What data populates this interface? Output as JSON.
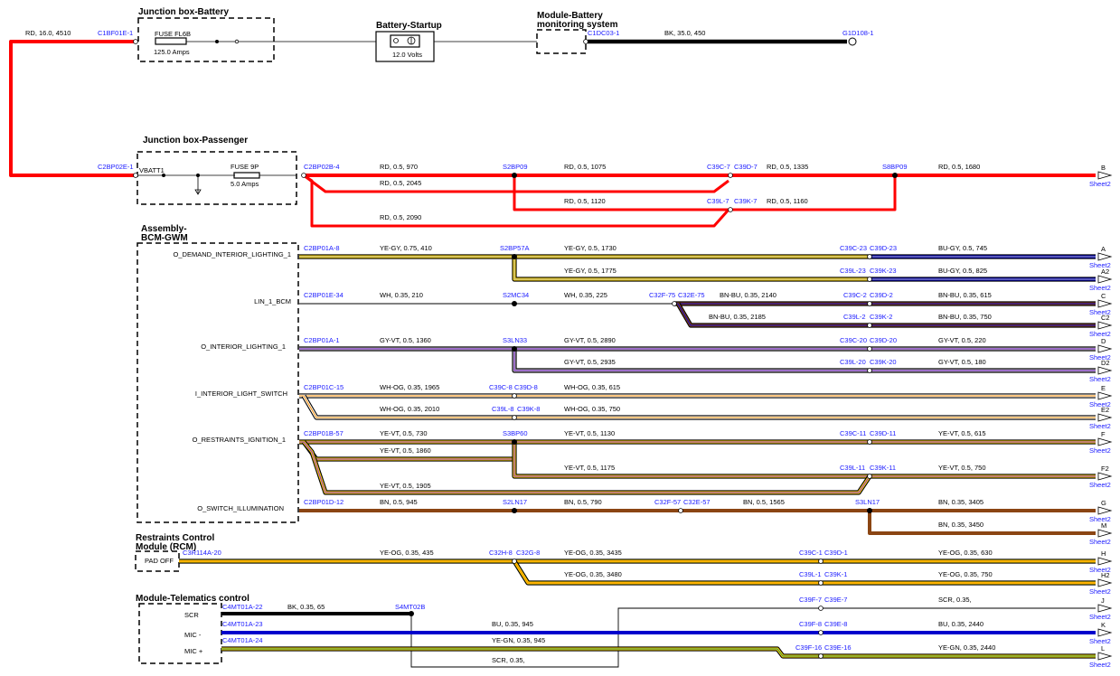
{
  "blocks": {
    "battery_jb": "Junction box-Battery",
    "battery_startup": "Battery-Startup",
    "bms_line1": "Module-Battery",
    "bms_line2": "monitoring system",
    "passenger_jb": "Junction box-Passenger",
    "bcm_line1": "Assembly-",
    "bcm_line2": "BCM-GWM",
    "rcm_line1": "Restraints Control",
    "rcm_line2": "Module (RCM)",
    "telematics": "Module-Telematics control"
  },
  "components": {
    "fuse_f6b": "FUSE FL6B",
    "fuse_f6b_amps": "125.0 Amps",
    "battery_volts": "12.0 Volts",
    "vbatt1": "VBATT1",
    "fuse_9p": "FUSE 9P",
    "fuse_9p_amps": "5.0 Amps"
  },
  "pins": {
    "bcm": [
      "O_DEMAND_INTERIOR_LIGHTING_1",
      "LIN_1_BCM",
      "O_INTERIOR_LIGHTING_1",
      "I_INTERIOR_LIGHT_SWITCH",
      "O_RESTRAINTS_IGNITION_1",
      "O_SWITCH_ILLUMINATION"
    ],
    "rcm": "PAD OFF",
    "tcu": [
      "SCR",
      "MIC -",
      "MIC +"
    ]
  },
  "connectors": [
    "C1BF01E-1",
    "C1DC03-1",
    "G1D108-1",
    "C2BP02E-1",
    "C2BP02B-4",
    "S2BP09",
    "C39C-7",
    "C39D-7",
    "S8BP09",
    "C39L-7",
    "C39K-7",
    "C2BP01A-8",
    "S2BP57A",
    "C39C-23",
    "C39D-23",
    "C39L-23",
    "C39K-23",
    "C2BP01E-34",
    "S2MC34",
    "C32F-75",
    "C32E-75",
    "C39C-2",
    "C39D-2",
    "C39L-2",
    "C39K-2",
    "C2BP01A-1",
    "S3LN33",
    "C39C-20",
    "C39D-20",
    "C39L-20",
    "C39K-20",
    "C2BP01C-15",
    "C39C-8",
    "C39D-8",
    "C39L-8",
    "C39K-8",
    "C2BP01B-57",
    "S3BP60",
    "C39C-11",
    "C39D-11",
    "C39L-11",
    "C39K-11",
    "C2BP01D-12",
    "S2LN17",
    "C32F-57",
    "C32E-57",
    "S3LN17",
    "C3R114A-20",
    "C32H-8",
    "C32G-8",
    "C39C-1",
    "C39D-1",
    "C39L-1",
    "C39K-1",
    "C4MT01A-22",
    "S4MT02B",
    "C39F-7",
    "C39E-7",
    "C4MT01A-23",
    "C39F-8",
    "C39E-8",
    "C4MT01A-24",
    "C39F-16",
    "C39E-16"
  ],
  "wires": [
    "RD, 16.0, 4510",
    "BK, 35.0, 450",
    "RD, 0.5, 970",
    "RD, 0.5, 1075",
    "RD, 0.5, 1335",
    "RD, 0.5, 1680",
    "RD, 0.5, 2045",
    "RD, 0.5, 1120",
    "RD, 0.5, 1160",
    "RD, 0.5, 2090",
    "YE-GY, 0.75, 410",
    "YE-GY, 0.5, 1730",
    "BU-GY, 0.5, 745",
    "YE-GY, 0.5, 1775",
    "BU-GY, 0.5, 825",
    "WH, 0.35, 210",
    "WH, 0.35, 225",
    "BN-BU, 0.35, 2140",
    "BN-BU, 0.35, 615",
    "BN-BU, 0.35, 2185",
    "BN-BU, 0.35, 750",
    "GY-VT, 0.5, 1360",
    "GY-VT, 0.5, 2890",
    "GY-VT, 0.5, 220",
    "GY-VT, 0.5, 2935",
    "GY-VT, 0.5, 180",
    "WH-OG, 0.35, 1965",
    "WH-OG, 0.35, 615",
    "WH-OG, 0.35, 2010",
    "WH-OG, 0.35, 750",
    "YE-VT, 0.5, 730",
    "YE-VT, 0.5, 1130",
    "YE-VT, 0.5, 615",
    "YE-VT, 0.5, 1860",
    "YE-VT, 0.5, 1175",
    "YE-VT, 0.5, 750",
    "YE-VT, 0.5, 1905",
    "BN, 0.5, 945",
    "BN, 0.5, 790",
    "BN, 0.5, 1565",
    "BN, 0.35, 3405",
    "BN, 0.35, 3450",
    "YE-OG, 0.35, 435",
    "YE-OG, 0.35, 3435",
    "YE-OG, 0.35, 630",
    "YE-OG, 0.35, 3480",
    "YE-OG, 0.35, 750",
    "BK, 0.35, 65",
    "SCR, 0.35,",
    "BU, 0.35, 945",
    "BU, 0.35, 2440",
    "YE-GN, 0.35, 945",
    "YE-GN, 0.35, 2440",
    "SCR, 0.35,"
  ],
  "offpage": {
    "letters": [
      "B",
      "A",
      "A2",
      "C",
      "C2",
      "D",
      "D2",
      "E",
      "E2",
      "F",
      "F2",
      "G",
      "M",
      "H",
      "H2",
      "J",
      "K",
      "L"
    ],
    "sheet": "Sheet2"
  },
  "colors": {
    "RD": "#ff0000",
    "BK": "#000000",
    "YE": "#ffd700",
    "GY": "#b0b0b0",
    "BU": "#0000cc",
    "BN": "#8b4513",
    "VT": "#8a2be2",
    "WH": "#ffffff",
    "OG": "#ff8c00",
    "GN": "#2e8b57",
    "connector_text": "#1a1aff"
  }
}
